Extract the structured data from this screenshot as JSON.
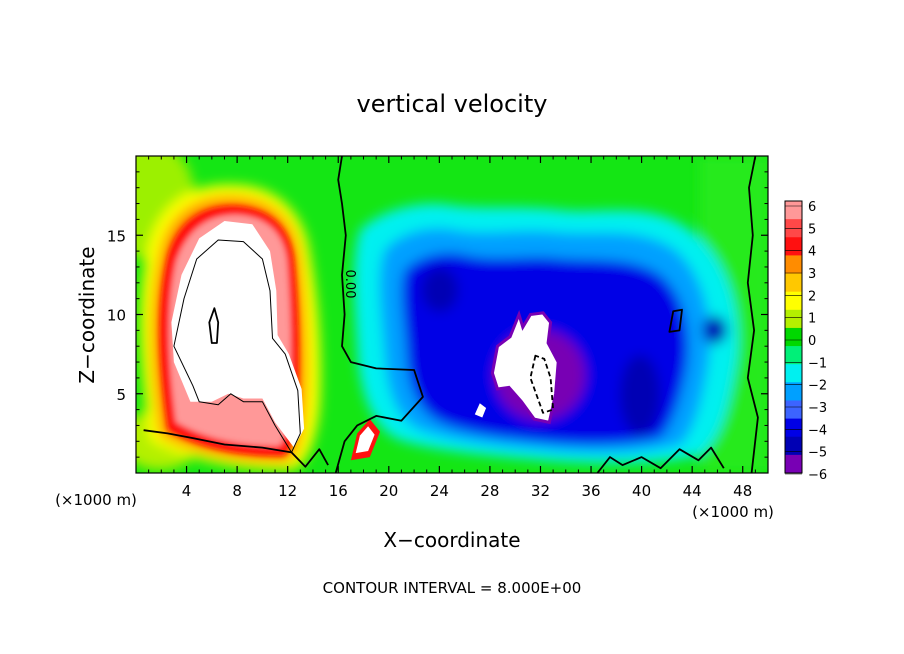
{
  "chart_data": {
    "type": "heatmap",
    "title": "vertical velocity",
    "xlabel": "X−coordinate",
    "ylabel": "Z−coordinate",
    "x_unit_left": "(×1000 m)",
    "x_unit_right": "(×1000 m)",
    "footer": "CONTOUR INTERVAL = 8.000E+00",
    "contour_label": "0.00",
    "xlim": [
      0,
      50
    ],
    "ylim": [
      0,
      20
    ],
    "x_ticks": [
      4,
      8,
      12,
      16,
      20,
      24,
      28,
      32,
      36,
      40,
      44,
      48
    ],
    "x_tick_labels": [
      "4",
      "8",
      "12",
      "16",
      "20",
      "24",
      "28",
      "32",
      "36",
      "40",
      "44",
      "48"
    ],
    "y_ticks": [
      5,
      10,
      15
    ],
    "y_tick_labels": [
      "5",
      "10",
      "15"
    ],
    "colorbar": {
      "levels": [
        6,
        5,
        4,
        3,
        2,
        1,
        0,
        -1,
        -2,
        -3,
        -4,
        -5,
        -6
      ],
      "labels": [
        "6",
        "5",
        "4",
        "3",
        "2",
        "1",
        "0",
        "−1",
        "−2",
        "−3",
        "−4",
        "−5",
        "−6"
      ],
      "colors": [
        "#ff9898",
        "#ff4848",
        "#ff1010",
        "#ff8c00",
        "#ffc800",
        "#ffff00",
        "#b4f000",
        "#00d800",
        "#00f078",
        "#00f0f0",
        "#00a0ff",
        "#3c64ff",
        "#0000e6",
        "#0000b4",
        "#7800b4"
      ]
    },
    "field_colors": {
      "background_green": "#14e614",
      "updraft_core": "#ffffff",
      "downdraft_core": "#ffffff"
    },
    "contours": [
      {
        "name": "updraft-zero-line",
        "style": "solid",
        "points": [
          [
            0.6,
            2.7
          ],
          [
            2.5,
            2.5
          ],
          [
            4.5,
            2.2
          ],
          [
            7.0,
            1.8
          ],
          [
            10.0,
            1.6
          ],
          [
            12.3,
            1.3
          ],
          [
            13.4,
            0.4
          ],
          [
            14.5,
            1.5
          ],
          [
            15.2,
            0.5
          ]
        ]
      },
      {
        "name": "central-zero-line",
        "style": "solid",
        "points": [
          [
            15.8,
            0.0
          ],
          [
            16.5,
            2.0
          ],
          [
            17.5,
            3.0
          ],
          [
            19.0,
            3.6
          ],
          [
            21.0,
            3.3
          ],
          [
            22.7,
            4.8
          ],
          [
            22.0,
            6.5
          ],
          [
            19.0,
            6.6
          ],
          [
            17.0,
            7.0
          ],
          [
            16.3,
            8.0
          ],
          [
            16.5,
            10.0
          ],
          [
            16.3,
            12.5
          ],
          [
            16.6,
            15.0
          ],
          [
            16.3,
            17.0
          ],
          [
            16.0,
            18.5
          ],
          [
            16.3,
            20.0
          ]
        ]
      },
      {
        "name": "right-zero-line",
        "style": "solid",
        "points": [
          [
            49.0,
            20.0
          ],
          [
            48.5,
            18.0
          ],
          [
            48.8,
            15.0
          ],
          [
            48.4,
            12.0
          ],
          [
            48.9,
            9.0
          ],
          [
            48.4,
            6.0
          ],
          [
            49.2,
            3.5
          ],
          [
            48.7,
            0.0
          ]
        ]
      },
      {
        "name": "lower-right-zero-line",
        "style": "solid",
        "points": [
          [
            36.5,
            0.0
          ],
          [
            37.5,
            1.0
          ],
          [
            38.5,
            0.5
          ],
          [
            40.0,
            1.0
          ],
          [
            41.5,
            0.3
          ],
          [
            43.0,
            1.5
          ],
          [
            44.5,
            0.8
          ],
          [
            45.5,
            1.6
          ],
          [
            46.5,
            0.3
          ]
        ]
      },
      {
        "name": "small-loop-right",
        "style": "solid",
        "closed": true,
        "points": [
          [
            42.2,
            8.9
          ],
          [
            42.5,
            10.2
          ],
          [
            43.2,
            10.3
          ],
          [
            43.0,
            9.0
          ]
        ]
      },
      {
        "name": "updraft-8-line",
        "style": "solid",
        "thin": true,
        "closed": true,
        "points": [
          [
            4.5,
            5.5
          ],
          [
            3.0,
            8.0
          ],
          [
            3.8,
            11.0
          ],
          [
            4.8,
            13.5
          ],
          [
            6.5,
            14.7
          ],
          [
            8.5,
            14.6
          ],
          [
            10.0,
            13.5
          ],
          [
            10.6,
            11.5
          ],
          [
            10.8,
            8.5
          ],
          [
            11.8,
            7.5
          ],
          [
            12.8,
            5.2
          ],
          [
            13.0,
            2.5
          ],
          [
            12.3,
            1.3
          ],
          [
            11.0,
            3.0
          ],
          [
            10.0,
            4.5
          ],
          [
            8.5,
            4.5
          ],
          [
            7.5,
            5.0
          ],
          [
            6.5,
            4.3
          ],
          [
            5.0,
            4.5
          ]
        ]
      },
      {
        "name": "updraft-16-loop",
        "style": "solid",
        "closed": true,
        "points": [
          [
            6.0,
            8.2
          ],
          [
            5.8,
            9.5
          ],
          [
            6.2,
            10.4
          ],
          [
            6.5,
            9.5
          ],
          [
            6.4,
            8.2
          ]
        ]
      },
      {
        "name": "downdraft-dashed-loop",
        "style": "dashed",
        "closed": true,
        "points": [
          [
            31.6,
            7.4
          ],
          [
            31.2,
            6.0
          ],
          [
            32.2,
            3.8
          ],
          [
            33.0,
            4.0
          ],
          [
            32.8,
            6.0
          ],
          [
            32.3,
            7.2
          ]
        ]
      }
    ],
    "features": [
      {
        "name": "updraft-white-core",
        "value": 7.0,
        "poly": [
          [
            4.3,
            4.5
          ],
          [
            3.0,
            7.0
          ],
          [
            2.8,
            9.5
          ],
          [
            3.6,
            12.5
          ],
          [
            5.0,
            14.8
          ],
          [
            7.0,
            15.9
          ],
          [
            9.2,
            15.7
          ],
          [
            10.6,
            14.0
          ],
          [
            11.1,
            11.5
          ],
          [
            11.2,
            8.7
          ],
          [
            12.1,
            7.5
          ],
          [
            13.1,
            5.3
          ],
          [
            13.3,
            2.8
          ],
          [
            12.5,
            1.6
          ],
          [
            11.0,
            3.2
          ],
          [
            10.0,
            4.7
          ],
          [
            8.5,
            4.7
          ],
          [
            7.3,
            5.0
          ],
          [
            6.0,
            4.5
          ]
        ]
      },
      {
        "name": "downdraft-white-core-main",
        "value": -7.0,
        "poly": [
          [
            28.2,
            6.3
          ],
          [
            28.6,
            8.0
          ],
          [
            29.6,
            8.6
          ],
          [
            30.3,
            10.0
          ],
          [
            30.6,
            9.2
          ],
          [
            31.2,
            10.0
          ],
          [
            32.2,
            10.1
          ],
          [
            32.8,
            9.5
          ],
          [
            32.6,
            8.2
          ],
          [
            33.4,
            7.0
          ],
          [
            33.2,
            5.0
          ],
          [
            32.7,
            3.2
          ],
          [
            31.5,
            3.4
          ],
          [
            30.5,
            4.5
          ],
          [
            29.5,
            5.4
          ],
          [
            28.6,
            5.3
          ]
        ]
      },
      {
        "name": "downdraft-white-core-small",
        "value": -7.0,
        "poly": [
          [
            26.8,
            3.7
          ],
          [
            27.2,
            4.4
          ],
          [
            27.7,
            4.1
          ],
          [
            27.4,
            3.5
          ]
        ]
      },
      {
        "name": "lower-red-cell",
        "value": 5.0,
        "poly": [
          [
            17.0,
            0.8
          ],
          [
            17.5,
            2.5
          ],
          [
            18.5,
            3.4
          ],
          [
            19.3,
            2.6
          ],
          [
            18.5,
            1.0
          ]
        ]
      }
    ]
  }
}
